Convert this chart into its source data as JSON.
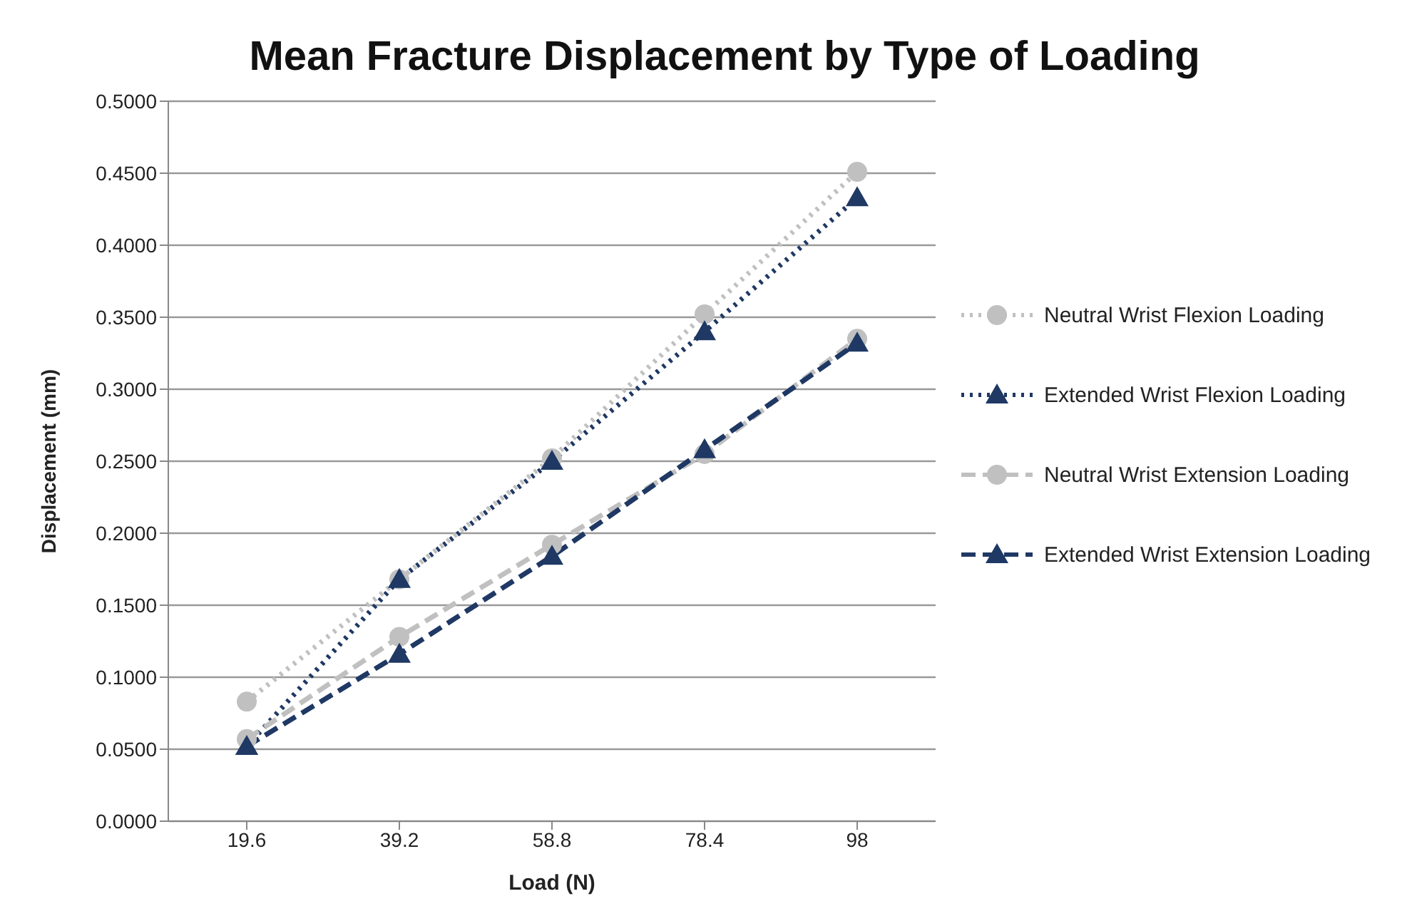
{
  "chart_data": {
    "type": "line",
    "title": "Mean Fracture Displacement by Type of Loading",
    "xlabel": "Load (N)",
    "ylabel": "Displacement (mm)",
    "categories": [
      "19.6",
      "39.2",
      "58.8",
      "78.4",
      "98"
    ],
    "ylim": [
      0,
      0.5
    ],
    "yticks": [
      {
        "value": 0,
        "label": "0.0000"
      },
      {
        "value": 0.05,
        "label": "0.0500"
      },
      {
        "value": 0.1,
        "label": "0.1000"
      },
      {
        "value": 0.15,
        "label": "0.1500"
      },
      {
        "value": 0.2,
        "label": "0.2000"
      },
      {
        "value": 0.25,
        "label": "0.2500"
      },
      {
        "value": 0.3,
        "label": "0.3000"
      },
      {
        "value": 0.35,
        "label": "0.3500"
      },
      {
        "value": 0.4,
        "label": "0.4000"
      },
      {
        "value": 0.45,
        "label": "0.4500"
      },
      {
        "value": 0.5,
        "label": "0.5000"
      }
    ],
    "grid": "y",
    "legend": "right",
    "series": [
      {
        "name": "Neutral Wrist Flexion Loading",
        "color": "#c0c0c0",
        "marker": "circle",
        "line_style": "dotted",
        "values": [
          0.083,
          0.168,
          0.252,
          0.352,
          0.451
        ]
      },
      {
        "name": "Extended Wrist Flexion Loading",
        "color": "#1f3864",
        "marker": "triangle",
        "line_style": "dotted",
        "values": [
          0.052,
          0.168,
          0.25,
          0.34,
          0.433
        ]
      },
      {
        "name": "Neutral Wrist Extension Loading",
        "color": "#c0c0c0",
        "marker": "circle",
        "line_style": "dashed",
        "values": [
          0.057,
          0.128,
          0.192,
          0.255,
          0.335
        ]
      },
      {
        "name": "Extended Wrist Extension Loading",
        "color": "#1f3864",
        "marker": "triangle",
        "line_style": "dashed",
        "values": [
          0.052,
          0.116,
          0.184,
          0.258,
          0.332
        ]
      }
    ]
  }
}
